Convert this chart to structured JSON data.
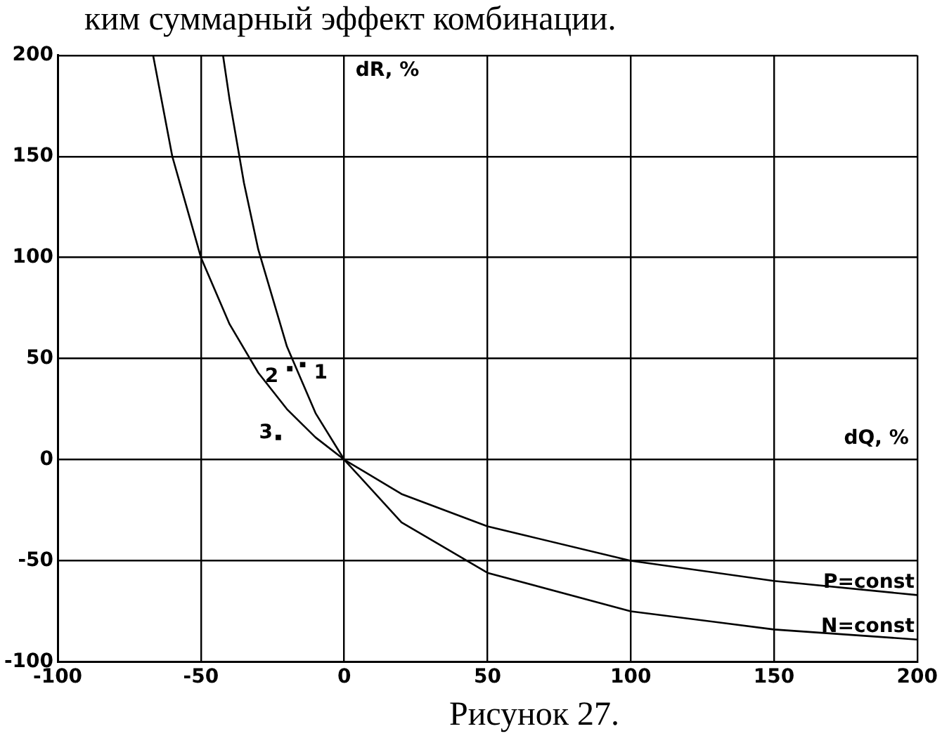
{
  "chart_data": {
    "type": "line",
    "xlabel": "dQ, %",
    "ylabel": "dR, %",
    "xlim": [
      -100,
      200
    ],
    "ylim": [
      -100,
      200
    ],
    "xticks": [
      -100,
      -50,
      0,
      50,
      100,
      150,
      200
    ],
    "yticks": [
      -100,
      -50,
      0,
      50,
      100,
      150,
      200
    ],
    "grid": true,
    "legend": false,
    "marker": "none",
    "line_style": "solid",
    "series": [
      {
        "name": "P=const",
        "color": "#000000",
        "x": [
          -66.7,
          -60,
          -50,
          -40,
          -30,
          -20,
          -10,
          0,
          20,
          50,
          100,
          150,
          200
        ],
        "values": [
          200,
          150,
          100,
          67,
          43,
          25,
          11,
          0,
          -17,
          -33,
          -50,
          -60,
          -67
        ]
      },
      {
        "name": "N=const",
        "color": "#000000",
        "x": [
          -42.3,
          -40,
          -35,
          -30,
          -20,
          -10,
          0,
          20,
          50,
          100,
          150,
          200
        ],
        "values": [
          200,
          178,
          137,
          104,
          56,
          23,
          0,
          -31,
          -56,
          -75,
          -84,
          -89
        ]
      },
      {
        "type": "scatter",
        "color": "#000000",
        "marker": "square",
        "x": [
          -14.5,
          -19,
          -23
        ],
        "values": [
          47,
          45,
          11
        ]
      }
    ],
    "annotations": [
      "ким суммарный эффект комбинации.",
      "Рисунок 27.",
      {
        "text": "1",
        "x": -14.5,
        "y": 47
      },
      {
        "text": "2",
        "x": -19,
        "y": 45
      },
      {
        "text": "3",
        "x": -23,
        "y": 11
      }
    ]
  }
}
